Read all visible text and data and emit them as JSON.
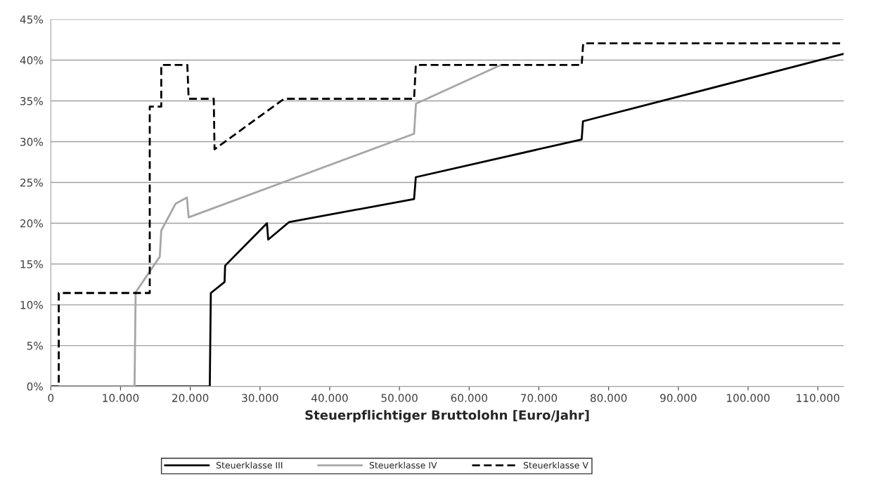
{
  "chart_data": {
    "type": "line",
    "xlabel": "Steuerpflichtiger Bruttolohn [Euro/Jahr]",
    "xlim": [
      0,
      113700
    ],
    "ylim": [
      0,
      45
    ],
    "xticks": [
      0,
      {
        "value": 10000,
        "label": "10.000"
      },
      {
        "value": 20000,
        "label": "20.000"
      },
      {
        "value": 30000,
        "label": "30.000"
      },
      {
        "value": 40000,
        "label": "40.000"
      },
      {
        "value": 50000,
        "label": "50.000"
      },
      {
        "value": 60000,
        "label": "60.000"
      },
      {
        "value": 70000,
        "label": "70.000"
      },
      {
        "value": 80000,
        "label": "80.000"
      },
      {
        "value": 90000,
        "label": "90.000"
      },
      {
        "value": 100000,
        "label": "100.000"
      },
      {
        "value": 110000,
        "label": "110.000"
      }
    ],
    "yticks": [
      {
        "value": 0,
        "label": "0%"
      },
      {
        "value": 5,
        "label": "5%"
      },
      {
        "value": 10,
        "label": "10%"
      },
      {
        "value": 15,
        "label": "15%"
      },
      {
        "value": 20,
        "label": "20%"
      },
      {
        "value": 25,
        "label": "25%"
      },
      {
        "value": 30,
        "label": "30%"
      },
      {
        "value": 35,
        "label": "35%"
      },
      {
        "value": 40,
        "label": "40%"
      },
      {
        "value": 45,
        "label": "45%"
      }
    ],
    "grid": "y",
    "legend": "bottom",
    "series": [
      {
        "name": "Steuerklasse III",
        "color": "#000000",
        "line_style": "solid",
        "x": [
          0,
          22800,
          22950,
          24920,
          25000,
          31000,
          31180,
          34190,
          52100,
          52350,
          76140,
          76320,
          113700
        ],
        "values": [
          0,
          0,
          11.45,
          12.8,
          14.8,
          20.0,
          18.0,
          20.15,
          22.96,
          25.65,
          30.28,
          32.5,
          40.76
        ]
      },
      {
        "name": "Steuerklasse IV",
        "color": "#a6a6a6",
        "line_style": "solid",
        "x": [
          0,
          12010,
          12170,
          15630,
          15840,
          17900,
          19520,
          19770,
          52100,
          52370,
          64530
        ],
        "values": [
          0,
          0,
          11.54,
          15.9,
          19.1,
          22.4,
          23.15,
          20.73,
          30.97,
          34.65,
          39.4
        ]
      },
      {
        "name": "Steuerklasse V",
        "color": "#000000",
        "line_style": "dashed",
        "x": [
          0,
          1140,
          1140,
          14190,
          14190,
          15840,
          15840,
          19580,
          19770,
          23370,
          23480,
          33460,
          52100,
          52350,
          76140,
          76350,
          113700
        ],
        "values": [
          0,
          0,
          11.45,
          11.45,
          34.3,
          34.3,
          39.4,
          39.4,
          35.26,
          35.26,
          29.07,
          35.26,
          35.26,
          39.4,
          39.4,
          42.05,
          42.05
        ]
      }
    ]
  }
}
